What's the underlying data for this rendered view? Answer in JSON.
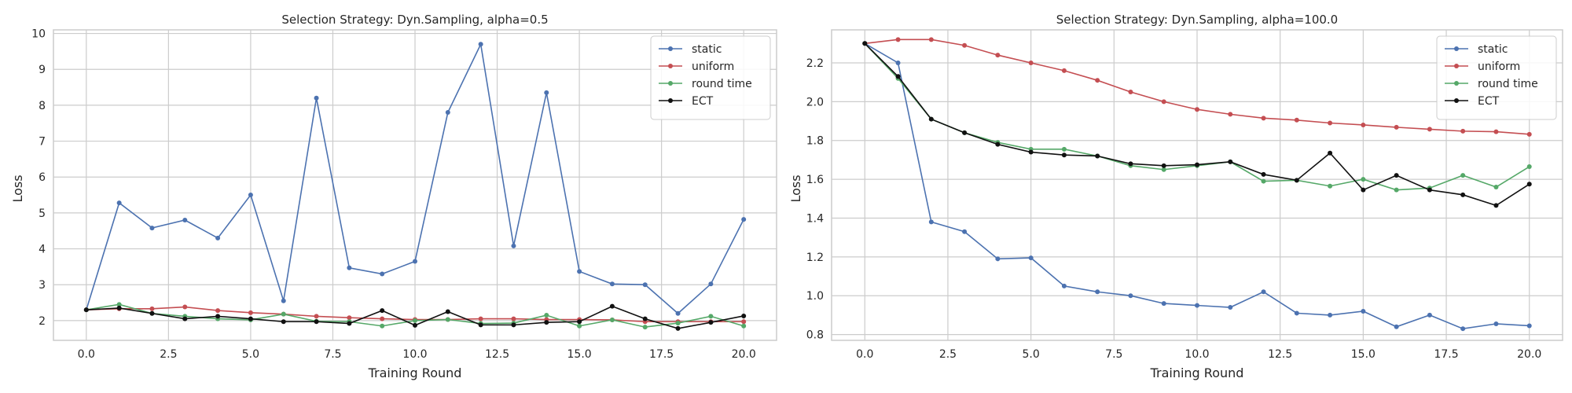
{
  "chart_data": [
    {
      "type": "line",
      "title": "Selection Strategy: Dyn.Sampling, alpha=0.5",
      "xlabel": "Training Round",
      "ylabel": "Loss",
      "xlim": [
        -1,
        21
      ],
      "ylim": [
        1.45,
        10.1
      ],
      "xticks": [
        0.0,
        2.5,
        5.0,
        7.5,
        10.0,
        12.5,
        15.0,
        17.5,
        20.0
      ],
      "xtick_labels": [
        "0.0",
        "2.5",
        "5.0",
        "7.5",
        "10.0",
        "12.5",
        "15.0",
        "17.5",
        "20.0"
      ],
      "yticks": [
        2,
        3,
        4,
        5,
        6,
        7,
        8,
        9,
        10
      ],
      "ytick_labels": [
        "2",
        "3",
        "4",
        "5",
        "6",
        "7",
        "8",
        "9",
        "10"
      ],
      "grid": true,
      "legend_position": "top-right",
      "x": [
        0,
        1,
        2,
        3,
        4,
        5,
        6,
        7,
        8,
        9,
        10,
        11,
        12,
        13,
        14,
        15,
        16,
        17,
        18,
        19,
        20
      ],
      "series": [
        {
          "name": "static",
          "color": "#4c72b0",
          "values": [
            2.3,
            5.28,
            4.58,
            4.8,
            4.3,
            5.5,
            2.55,
            8.2,
            3.47,
            3.3,
            3.65,
            7.8,
            9.7,
            4.08,
            8.35,
            3.37,
            3.02,
            3.0,
            2.2,
            3.02,
            4.82
          ]
        },
        {
          "name": "uniform",
          "color": "#c44e52",
          "values": [
            2.3,
            2.33,
            2.33,
            2.38,
            2.28,
            2.22,
            2.18,
            2.12,
            2.08,
            2.05,
            2.03,
            2.03,
            2.05,
            2.05,
            2.03,
            2.03,
            2.02,
            1.97,
            1.97,
            1.97,
            1.97
          ]
        },
        {
          "name": "round time",
          "color": "#55a868",
          "values": [
            2.3,
            2.45,
            2.2,
            2.12,
            2.05,
            2.02,
            2.18,
            1.98,
            1.97,
            1.85,
            2.0,
            2.03,
            1.92,
            1.93,
            2.15,
            1.85,
            2.02,
            1.82,
            1.93,
            2.12,
            1.85
          ]
        },
        {
          "name": "ECT",
          "color": "#111111",
          "values": [
            2.3,
            2.35,
            2.2,
            2.05,
            2.12,
            2.05,
            1.97,
            1.97,
            1.92,
            2.28,
            1.87,
            2.25,
            1.88,
            1.88,
            1.95,
            1.97,
            2.4,
            2.05,
            1.78,
            1.95,
            2.13
          ]
        }
      ]
    },
    {
      "type": "line",
      "title": "Selection Strategy: Dyn.Sampling, alpha=100.0",
      "xlabel": "Training Round",
      "ylabel": "Loss",
      "xlim": [
        -1,
        21
      ],
      "ylim": [
        0.77,
        2.37
      ],
      "xticks": [
        0.0,
        2.5,
        5.0,
        7.5,
        10.0,
        12.5,
        15.0,
        17.5,
        20.0
      ],
      "xtick_labels": [
        "0.0",
        "2.5",
        "5.0",
        "7.5",
        "10.0",
        "12.5",
        "15.0",
        "17.5",
        "20.0"
      ],
      "yticks": [
        0.8,
        1.0,
        1.2,
        1.4,
        1.6,
        1.8,
        2.0,
        2.2
      ],
      "ytick_labels": [
        "0.8",
        "1.0",
        "1.2",
        "1.4",
        "1.6",
        "1.8",
        "2.0",
        "2.2"
      ],
      "grid": true,
      "legend_position": "top-right",
      "x": [
        0,
        1,
        2,
        3,
        4,
        5,
        6,
        7,
        8,
        9,
        10,
        11,
        12,
        13,
        14,
        15,
        16,
        17,
        18,
        19,
        20
      ],
      "series": [
        {
          "name": "static",
          "color": "#4c72b0",
          "values": [
            2.3,
            2.2,
            1.38,
            1.33,
            1.19,
            1.195,
            1.05,
            1.02,
            1.0,
            0.96,
            0.95,
            0.94,
            1.02,
            0.91,
            0.9,
            0.92,
            0.84,
            0.9,
            0.83,
            0.855,
            0.845
          ]
        },
        {
          "name": "uniform",
          "color": "#c44e52",
          "values": [
            2.3,
            2.32,
            2.32,
            2.29,
            2.24,
            2.2,
            2.16,
            2.11,
            2.05,
            2.0,
            1.96,
            1.935,
            1.915,
            1.905,
            1.89,
            1.88,
            1.868,
            1.858,
            1.848,
            1.845,
            1.832
          ]
        },
        {
          "name": "round time",
          "color": "#55a868",
          "values": [
            2.3,
            2.12,
            1.91,
            1.84,
            1.79,
            1.755,
            1.755,
            1.72,
            1.67,
            1.65,
            1.67,
            1.69,
            1.59,
            1.595,
            1.565,
            1.6,
            1.545,
            1.555,
            1.62,
            1.56,
            1.665
          ]
        },
        {
          "name": "ECT",
          "color": "#111111",
          "values": [
            2.3,
            2.13,
            1.91,
            1.84,
            1.78,
            1.74,
            1.725,
            1.72,
            1.68,
            1.67,
            1.675,
            1.69,
            1.625,
            1.595,
            1.735,
            1.545,
            1.62,
            1.545,
            1.52,
            1.465,
            1.575
          ]
        }
      ]
    }
  ]
}
